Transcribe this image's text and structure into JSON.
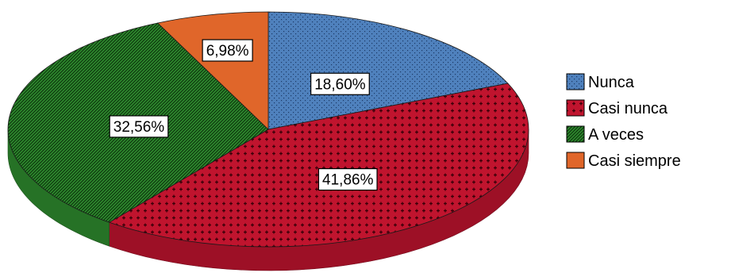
{
  "chart_data": {
    "type": "pie",
    "style": "3d-tilted",
    "title": "",
    "series": [
      {
        "name": "",
        "slices": [
          {
            "category": "Nunca",
            "value": 18.6,
            "label": "18,60%",
            "color": "#4f81bd",
            "pattern": "dots"
          },
          {
            "category": "Casi nunca",
            "value": 41.86,
            "label": "41,86%",
            "color": "#c0142e",
            "pattern": "crosses"
          },
          {
            "category": "A veces",
            "value": 32.56,
            "label": "32,56%",
            "color": "#2e8b2e",
            "pattern": "diagonal"
          },
          {
            "category": "Casi siempre",
            "value": 6.98,
            "label": "6,98%",
            "color": "#e0662a",
            "pattern": "solid"
          }
        ]
      }
    ],
    "legend_position": "right"
  }
}
